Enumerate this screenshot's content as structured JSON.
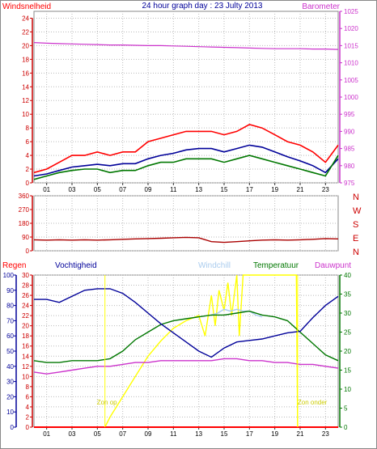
{
  "chart_data": [
    {
      "type": "line",
      "title": "24 hour graph day : 23 Julty 2013",
      "ylabel_left": "Windsnelheid",
      "ylabel_right": "Barometer",
      "ylim_left": [
        0,
        25
      ],
      "ylim_right": [
        975,
        1025
      ],
      "y_ticks_left": [
        "0",
        "2",
        "4",
        "6",
        "8",
        "10",
        "12",
        "14",
        "16",
        "18",
        "20",
        "22",
        "24"
      ],
      "y_ticks_right": [
        "975",
        "980",
        "985",
        "990",
        "995",
        "1000",
        "1005",
        "1010",
        "1015",
        "1020",
        "1025"
      ],
      "x_ticks": [
        "01",
        "03",
        "05",
        "07",
        "09",
        "11",
        "13",
        "15",
        "17",
        "19",
        "21",
        "23"
      ],
      "xlim": [
        0,
        24
      ],
      "colors": {
        "barometer": "#cc33cc",
        "gust": "#ff0000",
        "avg": "#000099",
        "wind": "#007700"
      },
      "series": [
        {
          "key": "barometer",
          "axis": "right",
          "x": [
            0,
            1,
            2,
            3,
            4,
            5,
            6,
            7,
            8,
            9,
            10,
            11,
            12,
            13,
            14,
            15,
            16,
            17,
            18,
            19,
            20,
            21,
            22,
            23,
            24
          ],
          "values": [
            1015.9,
            1015.7,
            1015.6,
            1015.5,
            1015.4,
            1015.3,
            1015.2,
            1015.2,
            1015.1,
            1015.0,
            1015.0,
            1014.9,
            1014.8,
            1014.7,
            1014.6,
            1014.5,
            1014.4,
            1014.3,
            1014.2,
            1014.1,
            1014.1,
            1014.1,
            1014.0,
            1014.0,
            1013.9
          ]
        },
        {
          "key": "gust",
          "axis": "left",
          "x": [
            0,
            1,
            2,
            3,
            4,
            5,
            6,
            7,
            8,
            9,
            10,
            11,
            12,
            13,
            14,
            15,
            16,
            17,
            18,
            19,
            20,
            21,
            22,
            23,
            24
          ],
          "values": [
            1.5,
            2,
            3,
            4,
            4,
            4.5,
            4,
            4.5,
            4.5,
            6,
            6.5,
            7,
            7.5,
            7.5,
            7.5,
            7,
            7.5,
            8.5,
            8,
            7,
            6,
            5.5,
            4.5,
            3,
            5.5
          ]
        },
        {
          "key": "avg",
          "axis": "left",
          "x": [
            0,
            1,
            2,
            3,
            4,
            5,
            6,
            7,
            8,
            9,
            10,
            11,
            12,
            13,
            14,
            15,
            16,
            17,
            18,
            19,
            20,
            21,
            22,
            23,
            24
          ],
          "values": [
            1,
            1.3,
            1.8,
            2.3,
            2.5,
            2.7,
            2.5,
            2.8,
            2.8,
            3.5,
            4,
            4.3,
            4.8,
            5,
            5,
            4.5,
            5,
            5.5,
            5.2,
            4.5,
            3.8,
            3.2,
            2.5,
            1.5,
            3.5
          ]
        },
        {
          "key": "wind",
          "axis": "left",
          "x": [
            0,
            1,
            2,
            3,
            4,
            5,
            6,
            7,
            8,
            9,
            10,
            11,
            12,
            13,
            14,
            15,
            16,
            17,
            18,
            19,
            20,
            21,
            22,
            23,
            24
          ],
          "values": [
            0.5,
            1,
            1.5,
            1.8,
            2,
            2,
            1.5,
            1.8,
            1.8,
            2.5,
            3,
            3,
            3.5,
            3.5,
            3.5,
            3,
            3.5,
            4,
            3.5,
            3,
            2.5,
            2,
            1.5,
            1,
            4
          ]
        }
      ]
    },
    {
      "type": "line",
      "ylim": [
        0,
        360
      ],
      "y_ticks": [
        "0",
        "90",
        "180",
        "270",
        "360"
      ],
      "directions": [
        "N",
        "W",
        "S",
        "E",
        "N"
      ],
      "xlim": [
        0,
        24
      ],
      "colors": {
        "direction": "#aa0000"
      },
      "series": [
        {
          "key": "direction",
          "x": [
            0,
            1,
            2,
            3,
            4,
            5,
            6,
            7,
            8,
            9,
            10,
            11,
            12,
            13,
            14,
            15,
            16,
            17,
            18,
            19,
            20,
            21,
            22,
            23,
            24
          ],
          "values": [
            72,
            70,
            72,
            70,
            72,
            70,
            72,
            75,
            78,
            80,
            82,
            85,
            88,
            85,
            60,
            55,
            60,
            65,
            70,
            72,
            70,
            72,
            75,
            80,
            78
          ]
        }
      ]
    },
    {
      "type": "line",
      "labels": {
        "regen": "Regen",
        "vochtigheid": "Vochtigheid",
        "windchill": "Windchill",
        "temperatuur": "Temperatuur",
        "dauwpunt": "Dauwpunt"
      },
      "annotations": {
        "sunrise": "Zon op",
        "sunset": "Zon onder"
      },
      "ylim_humidity": [
        0,
        100
      ],
      "ylim_temp_left": [
        0,
        30
      ],
      "ylim_temp_right": [
        0,
        40
      ],
      "y_ticks_humidity": [
        "0",
        "10",
        "20",
        "30",
        "40",
        "50",
        "60",
        "70",
        "80",
        "90",
        "100"
      ],
      "y_ticks_temp_left": [
        "0",
        "2",
        "4",
        "6",
        "8",
        "10",
        "12",
        "14",
        "16",
        "18",
        "20",
        "22",
        "24",
        "26",
        "28",
        "30"
      ],
      "y_ticks_temp_right": [
        "0",
        "5",
        "10",
        "15",
        "20",
        "25",
        "30",
        "35",
        "40"
      ],
      "x_ticks": [
        "01",
        "03",
        "05",
        "07",
        "09",
        "11",
        "13",
        "15",
        "17",
        "19",
        "21",
        "23"
      ],
      "xlim": [
        0,
        24
      ],
      "colors": {
        "regen": "#ff0000",
        "vochtigheid": "#000099",
        "windchill": "#aaccee",
        "temperatuur": "#007700",
        "dauwpunt": "#cc33cc",
        "solar": "#ffff00",
        "sun_label": "#cccc00"
      },
      "sunrise_x": 5.6,
      "sunset_x": 20.8,
      "series": [
        {
          "key": "vochtigheid",
          "axis": "humidity",
          "x": [
            0,
            1,
            2,
            3,
            4,
            5,
            6,
            7,
            8,
            9,
            10,
            11,
            12,
            13,
            14,
            15,
            16,
            17,
            18,
            19,
            20,
            21,
            22,
            23,
            24
          ],
          "values": [
            84,
            84,
            82,
            86,
            90,
            91,
            91,
            88,
            82,
            75,
            68,
            62,
            56,
            50,
            46,
            52,
            56,
            57,
            58,
            60,
            62,
            63,
            72,
            80,
            86
          ]
        },
        {
          "key": "temperatuur",
          "axis": "temp_right",
          "x": [
            0,
            1,
            2,
            3,
            4,
            5,
            6,
            7,
            8,
            9,
            10,
            11,
            12,
            13,
            14,
            15,
            16,
            17,
            18,
            19,
            20,
            21,
            22,
            23,
            24
          ],
          "values": [
            17.5,
            17,
            17,
            17.5,
            17.5,
            17.5,
            18,
            20,
            23,
            25,
            27,
            28,
            28.5,
            29,
            29.5,
            29.5,
            30,
            30.5,
            29.5,
            29,
            28,
            25,
            22,
            19,
            17.5
          ]
        },
        {
          "key": "dauwpunt",
          "axis": "temp_right",
          "x": [
            0,
            1,
            2,
            3,
            4,
            5,
            6,
            7,
            8,
            9,
            10,
            11,
            12,
            13,
            14,
            15,
            16,
            17,
            18,
            19,
            20,
            21,
            22,
            23,
            24
          ],
          "values": [
            14.5,
            14,
            14.5,
            15,
            15.5,
            16,
            16,
            16.5,
            17,
            17,
            17.5,
            17.5,
            17.5,
            17.5,
            17.5,
            18,
            18,
            17.5,
            17.5,
            17,
            17,
            16.5,
            16.5,
            16,
            15.5
          ]
        },
        {
          "key": "windchill",
          "axis": "temp_right",
          "x": [
            14,
            14.5,
            15,
            15.5,
            16,
            16.5,
            17,
            17.5,
            18
          ],
          "values": [
            29.5,
            30,
            31,
            30.5,
            31,
            30.5,
            30.5,
            29.5,
            29
          ]
        },
        {
          "key": "solar",
          "axis": "temp_left",
          "x": [
            5.6,
            6,
            7,
            8,
            9,
            10,
            11,
            12,
            13,
            13.5,
            14,
            14.3,
            14.6,
            15,
            15.3,
            15.6,
            16,
            16.2,
            16.5,
            17,
            18,
            19,
            20,
            20.7,
            20.8
          ],
          "values": [
            0,
            2,
            6,
            10,
            14,
            17,
            19.5,
            21,
            22,
            18,
            26,
            20,
            27,
            23,
            28.5,
            22,
            30,
            18,
            30,
            30,
            30,
            30,
            30,
            30,
            0
          ]
        },
        {
          "key": "regen",
          "axis": "humidity",
          "x": [
            0,
            24
          ],
          "values": [
            0,
            0
          ]
        }
      ]
    }
  ]
}
